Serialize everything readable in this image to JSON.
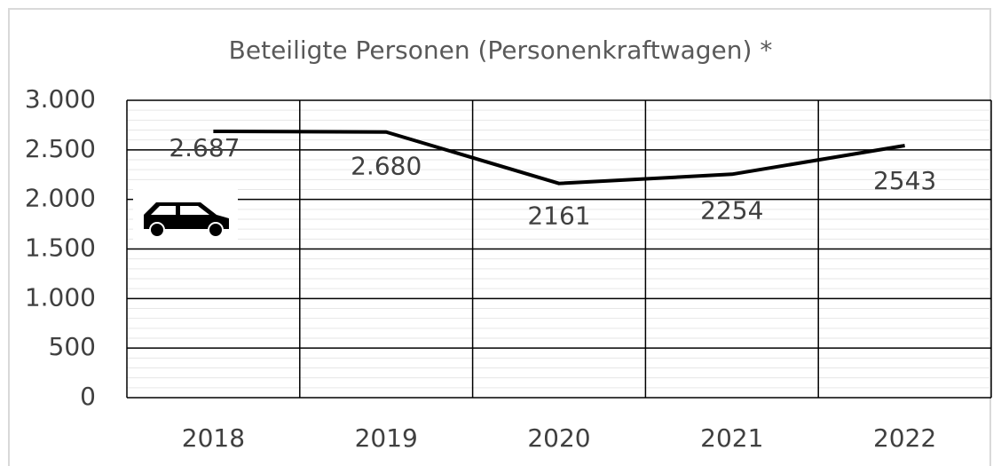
{
  "chart_data": {
    "type": "line",
    "title": "Beteiligte Personen (Personenkraftwagen) *",
    "categories": [
      "2018",
      "2019",
      "2020",
      "2021",
      "2022"
    ],
    "series": [
      {
        "name": "Beteiligte Personen",
        "color": "#000000",
        "values": [
          2687,
          2680,
          2161,
          2254,
          2543
        ],
        "value_labels": [
          "2.687",
          "2.680",
          "2161",
          "2254",
          "2543"
        ]
      }
    ],
    "ylim": [
      0,
      3000
    ],
    "yticks": [
      0,
      500,
      {
        "value": 1000,
        "label": "1.000"
      },
      {
        "value": 1500,
        "label": "1.500"
      },
      {
        "value": 2000,
        "label": "2.000"
      },
      {
        "value": 2500,
        "label": "2.500"
      },
      {
        "value": 3000,
        "label": "3.000"
      }
    ],
    "grid": true
  }
}
